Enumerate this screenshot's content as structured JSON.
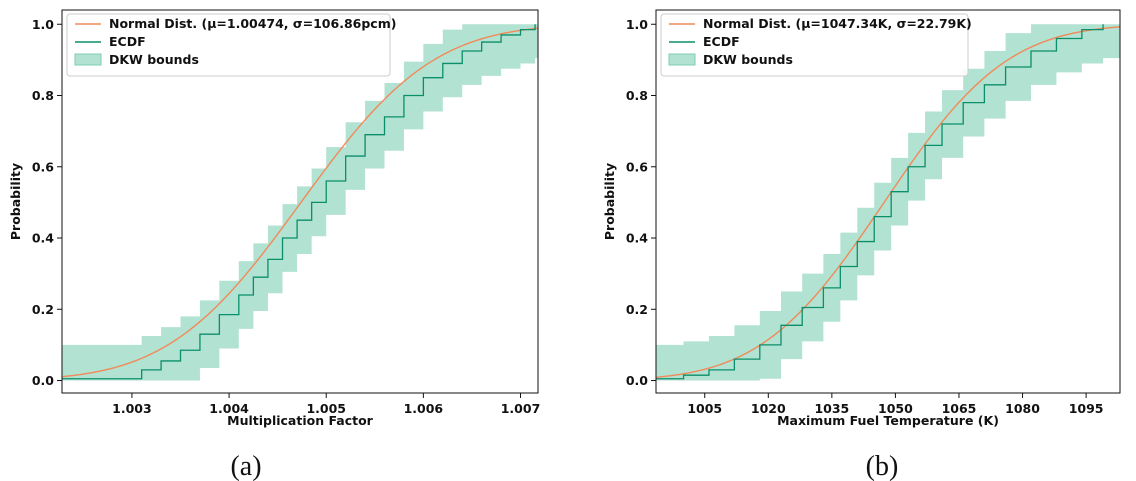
{
  "chart_data": [
    {
      "type": "line",
      "panel_caption": "(a)",
      "xlabel": "Multiplication Factor",
      "ylabel": "Probability",
      "xlim": [
        1.00228,
        1.00718
      ],
      "ylim": [
        -0.035,
        1.04
      ],
      "xticks": [
        1.003,
        1.004,
        1.005,
        1.006,
        1.007
      ],
      "xtick_labels": [
        "1.003",
        "1.004",
        "1.005",
        "1.006",
        "1.007"
      ],
      "yticks": [
        0.0,
        0.2,
        0.4,
        0.6,
        0.8,
        1.0
      ],
      "ytick_labels": [
        "0.0",
        "0.2",
        "0.4",
        "0.6",
        "0.8",
        "1.0"
      ],
      "legend": [
        "Normal Dist. (μ=1.00474, σ=106.86pcm)",
        "ECDF",
        "DKW bounds"
      ],
      "legend_position": "upper-left",
      "normal": {
        "mu": 1.00474,
        "sigma": 0.0010686
      },
      "dkw_epsilon": 0.095,
      "ecdf": {
        "x": [
          1.00228,
          1.0031,
          1.0033,
          1.0035,
          1.0037,
          1.0039,
          1.0041,
          1.00425,
          1.0044,
          1.00455,
          1.0047,
          1.00485,
          1.005,
          1.0052,
          1.0054,
          1.0056,
          1.0058,
          1.006,
          1.0062,
          1.0064,
          1.0066,
          1.0068,
          1.007,
          1.00715
        ],
        "y": [
          0.005,
          0.03,
          0.055,
          0.085,
          0.13,
          0.185,
          0.24,
          0.29,
          0.34,
          0.4,
          0.45,
          0.5,
          0.56,
          0.63,
          0.69,
          0.74,
          0.8,
          0.85,
          0.89,
          0.925,
          0.95,
          0.97,
          0.985,
          1.0
        ]
      }
    },
    {
      "type": "line",
      "panel_caption": "(b)",
      "xlabel": "Maximum Fuel Temperature (K)",
      "ylabel": "Probability",
      "xlim": [
        993.5,
        1103.0
      ],
      "ylim": [
        -0.035,
        1.04
      ],
      "xticks": [
        1005,
        1020,
        1035,
        1050,
        1065,
        1080,
        1095
      ],
      "xtick_labels": [
        "1005",
        "1020",
        "1035",
        "1050",
        "1065",
        "1080",
        "1095"
      ],
      "yticks": [
        0.0,
        0.2,
        0.4,
        0.6,
        0.8,
        1.0
      ],
      "ytick_labels": [
        "0.0",
        "0.2",
        "0.4",
        "0.6",
        "0.8",
        "1.0"
      ],
      "legend": [
        "Normal Dist. (μ=1047.34K, σ=22.79K)",
        "ECDF",
        "DKW bounds"
      ],
      "legend_position": "upper-left",
      "normal": {
        "mu": 1047.34,
        "sigma": 22.79
      },
      "dkw_epsilon": 0.095,
      "ecdf": {
        "x": [
          993.5,
          1000,
          1006,
          1012,
          1018,
          1023,
          1028,
          1033,
          1037,
          1041,
          1045,
          1049,
          1053,
          1057,
          1061,
          1066,
          1071,
          1076,
          1082,
          1088,
          1094,
          1099
        ],
        "y": [
          0.005,
          0.015,
          0.03,
          0.06,
          0.1,
          0.155,
          0.205,
          0.26,
          0.32,
          0.39,
          0.46,
          0.53,
          0.6,
          0.66,
          0.72,
          0.78,
          0.83,
          0.88,
          0.925,
          0.96,
          0.985,
          1.0
        ]
      }
    }
  ],
  "colors": {
    "normal_line": "#f08a5a",
    "ecdf_line": "#0b8f6a",
    "dkw_fill": "#7fcfb2"
  }
}
